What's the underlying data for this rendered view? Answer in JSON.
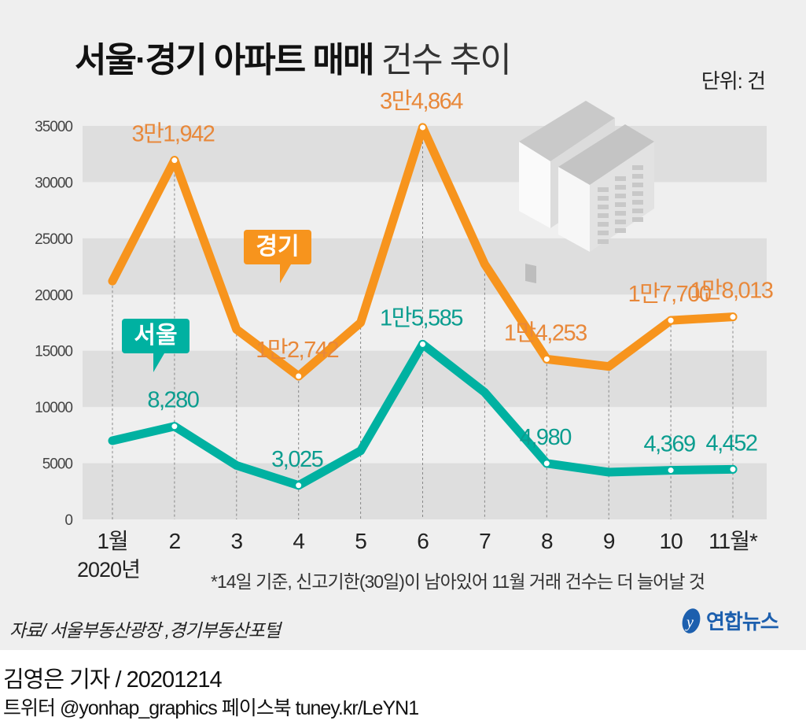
{
  "title": {
    "bold": "서울·경기 아파트 매매",
    "light": "건수 추이"
  },
  "unit_label": "단위: 건",
  "chart_data": {
    "type": "line",
    "title": "서울·경기 아파트 매매 건수 추이",
    "categories": [
      "1월",
      "2",
      "3",
      "4",
      "5",
      "6",
      "7",
      "8",
      "9",
      "10",
      "11월*"
    ],
    "year_label": "2020년",
    "ylim": [
      0,
      35000
    ],
    "yticks": [
      0,
      5000,
      10000,
      15000,
      20000,
      25000,
      30000,
      35000
    ],
    "grid": "alternating horizontal bands",
    "series": [
      {
        "name": "경기",
        "color": "#f7941d",
        "label_color": "#e8883a",
        "values": [
          21200,
          31942,
          16900,
          12742,
          17500,
          34864,
          22700,
          14253,
          13600,
          17700,
          18013
        ],
        "data_labels": [
          null,
          "3만1,942",
          null,
          "1만2,742",
          null,
          "3만4,864",
          null,
          "1만4,253",
          null,
          "1만7,700",
          "1만8,013"
        ]
      },
      {
        "name": "서울",
        "color": "#00b1a1",
        "label_color": "#0b9d8f",
        "values": [
          7000,
          8280,
          4800,
          3025,
          6100,
          15585,
          11300,
          4980,
          4200,
          4369,
          4452
        ],
        "data_labels": [
          null,
          "8,280",
          null,
          "3,025",
          null,
          "1만5,585",
          null,
          "4,980",
          null,
          "4,369",
          "4,452"
        ]
      }
    ]
  },
  "footnote": "*14일 기준, 신고기한(30일)이 남아있어 11월 거래 건수는 더 늘어날 것",
  "source": "자료/ 서울부동산광장 ,경기부동산포털",
  "logo": "연합뉴스",
  "byline": "김영은 기자 / 20201214",
  "social": "트위터 @yonhap_graphics  페이스북 tuney.kr/LeYN1"
}
